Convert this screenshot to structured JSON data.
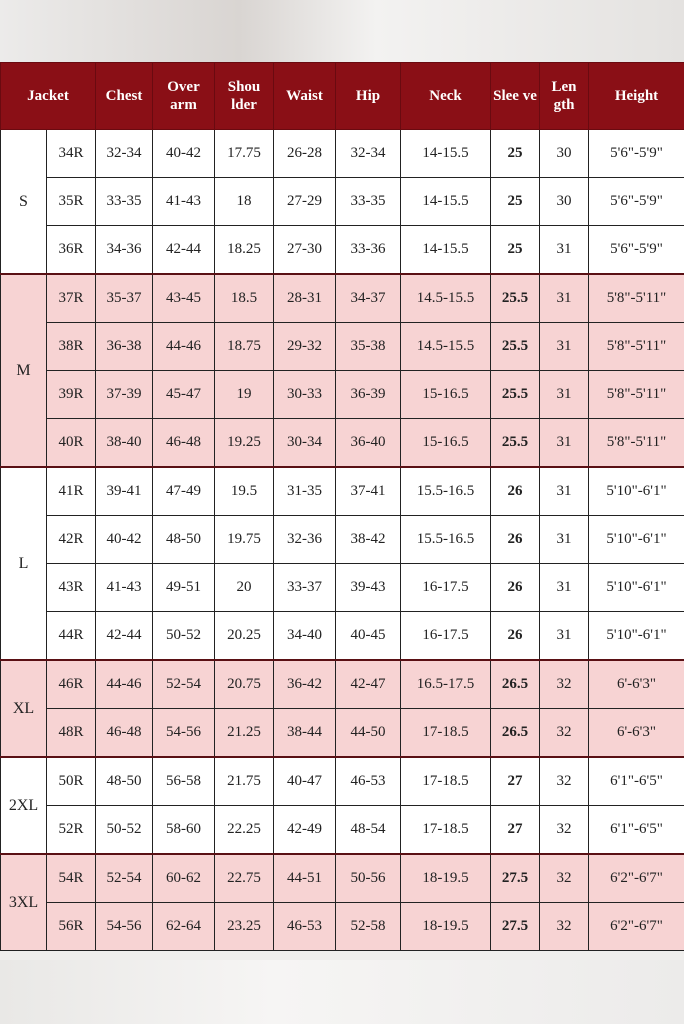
{
  "headers": [
    "Jacket",
    "Chest",
    "Over arm",
    "Shou lder",
    "Waist",
    "Hip",
    "Neck",
    "Slee ve",
    "Len gth",
    "Height"
  ],
  "colors": {
    "header_bg": "#8a0f16",
    "pink_row": "#f7d3d3",
    "white_row": "#ffffff"
  },
  "groups": [
    {
      "name": "S",
      "shade": "white",
      "rows": [
        [
          "34R",
          "32-34",
          "40-42",
          "17.75",
          "26-28",
          "32-34",
          "14-15.5",
          "25",
          "30",
          "5'6\"-5'9\""
        ],
        [
          "35R",
          "33-35",
          "41-43",
          "18",
          "27-29",
          "33-35",
          "14-15.5",
          "25",
          "30",
          "5'6\"-5'9\""
        ],
        [
          "36R",
          "34-36",
          "42-44",
          "18.25",
          "27-30",
          "33-36",
          "14-15.5",
          "25",
          "31",
          "5'6\"-5'9\""
        ]
      ]
    },
    {
      "name": "M",
      "shade": "pink",
      "rows": [
        [
          "37R",
          "35-37",
          "43-45",
          "18.5",
          "28-31",
          "34-37",
          "14.5-15.5",
          "25.5",
          "31",
          "5'8\"-5'11\""
        ],
        [
          "38R",
          "36-38",
          "44-46",
          "18.75",
          "29-32",
          "35-38",
          "14.5-15.5",
          "25.5",
          "31",
          "5'8\"-5'11\""
        ],
        [
          "39R",
          "37-39",
          "45-47",
          "19",
          "30-33",
          "36-39",
          "15-16.5",
          "25.5",
          "31",
          "5'8\"-5'11\""
        ],
        [
          "40R",
          "38-40",
          "46-48",
          "19.25",
          "30-34",
          "36-40",
          "15-16.5",
          "25.5",
          "31",
          "5'8\"-5'11\""
        ]
      ]
    },
    {
      "name": "L",
      "shade": "white",
      "rows": [
        [
          "41R",
          "39-41",
          "47-49",
          "19.5",
          "31-35",
          "37-41",
          "15.5-16.5",
          "26",
          "31",
          "5'10\"-6'1\""
        ],
        [
          "42R",
          "40-42",
          "48-50",
          "19.75",
          "32-36",
          "38-42",
          "15.5-16.5",
          "26",
          "31",
          "5'10\"-6'1\""
        ],
        [
          "43R",
          "41-43",
          "49-51",
          "20",
          "33-37",
          "39-43",
          "16-17.5",
          "26",
          "31",
          "5'10\"-6'1\""
        ],
        [
          "44R",
          "42-44",
          "50-52",
          "20.25",
          "34-40",
          "40-45",
          "16-17.5",
          "26",
          "31",
          "5'10\"-6'1\""
        ]
      ]
    },
    {
      "name": "XL",
      "shade": "pink",
      "rows": [
        [
          "46R",
          "44-46",
          "52-54",
          "20.75",
          "36-42",
          "42-47",
          "16.5-17.5",
          "26.5",
          "32",
          "6'-6'3\""
        ],
        [
          "48R",
          "46-48",
          "54-56",
          "21.25",
          "38-44",
          "44-50",
          "17-18.5",
          "26.5",
          "32",
          "6'-6'3\""
        ]
      ]
    },
    {
      "name": "2XL",
      "shade": "white",
      "rows": [
        [
          "50R",
          "48-50",
          "56-58",
          "21.75",
          "40-47",
          "46-53",
          "17-18.5",
          "27",
          "32",
          "6'1\"-6'5\""
        ],
        [
          "52R",
          "50-52",
          "58-60",
          "22.25",
          "42-49",
          "48-54",
          "17-18.5",
          "27",
          "32",
          "6'1\"-6'5\""
        ]
      ]
    },
    {
      "name": "3XL",
      "shade": "pink",
      "rows": [
        [
          "54R",
          "52-54",
          "60-62",
          "22.75",
          "44-51",
          "50-56",
          "18-19.5",
          "27.5",
          "32",
          "6'2\"-6'7\""
        ],
        [
          "56R",
          "54-56",
          "62-64",
          "23.25",
          "46-53",
          "52-58",
          "18-19.5",
          "27.5",
          "32",
          "6'2\"-6'7\""
        ]
      ]
    }
  ]
}
